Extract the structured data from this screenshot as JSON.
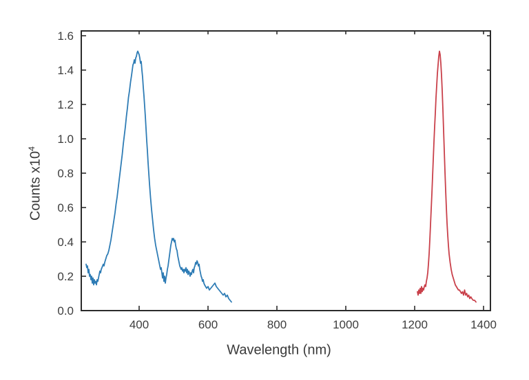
{
  "figure": {
    "background": "#ffffff",
    "ylabel_main": "Counts x10",
    "ylabel_sup": "4"
  },
  "chart_data": {
    "type": "line",
    "title": "",
    "xlabel": "Wavelength (nm)",
    "ylabel": "Counts x10^4",
    "xlim": [
      232,
      1420
    ],
    "ylim": [
      0,
      1.628
    ],
    "x_ticks": [
      400,
      600,
      800,
      1000,
      1200,
      1400
    ],
    "y_ticks": [
      0.0,
      0.2,
      0.4,
      0.6,
      0.8,
      1.0,
      1.2,
      1.4,
      1.6
    ],
    "grid": false,
    "legend": "none",
    "axis_color": "#2b2b2b",
    "tick_label_color": "#3d3d3d",
    "series": [
      {
        "name": "blue-spectrum",
        "color": "#2e7cb5",
        "points": [
          [
            246,
            0.27
          ],
          [
            248,
            0.25
          ],
          [
            250,
            0.26
          ],
          [
            252,
            0.22
          ],
          [
            254,
            0.24
          ],
          [
            256,
            0.2
          ],
          [
            258,
            0.21
          ],
          [
            260,
            0.18
          ],
          [
            262,
            0.2
          ],
          [
            264,
            0.16
          ],
          [
            266,
            0.19
          ],
          [
            268,
            0.15
          ],
          [
            270,
            0.18
          ],
          [
            272,
            0.16
          ],
          [
            274,
            0.17
          ],
          [
            276,
            0.15
          ],
          [
            278,
            0.18
          ],
          [
            280,
            0.17
          ],
          [
            282,
            0.19
          ],
          [
            284,
            0.21
          ],
          [
            286,
            0.23
          ],
          [
            288,
            0.22
          ],
          [
            290,
            0.24
          ],
          [
            292,
            0.25
          ],
          [
            294,
            0.26
          ],
          [
            296,
            0.27
          ],
          [
            298,
            0.26
          ],
          [
            300,
            0.28
          ],
          [
            303,
            0.3
          ],
          [
            306,
            0.32
          ],
          [
            309,
            0.33
          ],
          [
            312,
            0.35
          ],
          [
            315,
            0.38
          ],
          [
            318,
            0.41
          ],
          [
            321,
            0.45
          ],
          [
            324,
            0.49
          ],
          [
            327,
            0.53
          ],
          [
            330,
            0.57
          ],
          [
            333,
            0.62
          ],
          [
            336,
            0.66
          ],
          [
            339,
            0.71
          ],
          [
            342,
            0.76
          ],
          [
            345,
            0.81
          ],
          [
            348,
            0.86
          ],
          [
            351,
            0.91
          ],
          [
            354,
            0.97
          ],
          [
            357,
            1.02
          ],
          [
            360,
            1.07
          ],
          [
            363,
            1.13
          ],
          [
            366,
            1.18
          ],
          [
            369,
            1.24
          ],
          [
            372,
            1.28
          ],
          [
            375,
            1.33
          ],
          [
            378,
            1.37
          ],
          [
            380,
            1.4
          ],
          [
            382,
            1.43
          ],
          [
            384,
            1.44
          ],
          [
            386,
            1.46
          ],
          [
            388,
            1.44
          ],
          [
            390,
            1.47
          ],
          [
            392,
            1.48
          ],
          [
            394,
            1.5
          ],
          [
            396,
            1.51
          ],
          [
            398,
            1.5
          ],
          [
            400,
            1.49
          ],
          [
            402,
            1.47
          ],
          [
            404,
            1.44
          ],
          [
            406,
            1.45
          ],
          [
            408,
            1.4
          ],
          [
            410,
            1.36
          ],
          [
            412,
            1.3
          ],
          [
            414,
            1.25
          ],
          [
            416,
            1.19
          ],
          [
            418,
            1.13
          ],
          [
            420,
            1.06
          ],
          [
            422,
            0.99
          ],
          [
            424,
            0.93
          ],
          [
            426,
            0.86
          ],
          [
            428,
            0.8
          ],
          [
            430,
            0.74
          ],
          [
            433,
            0.66
          ],
          [
            436,
            0.59
          ],
          [
            439,
            0.53
          ],
          [
            442,
            0.47
          ],
          [
            445,
            0.42
          ],
          [
            448,
            0.38
          ],
          [
            451,
            0.35
          ],
          [
            454,
            0.32
          ],
          [
            457,
            0.29
          ],
          [
            460,
            0.26
          ],
          [
            462,
            0.24
          ],
          [
            464,
            0.25
          ],
          [
            466,
            0.22
          ],
          [
            468,
            0.19
          ],
          [
            470,
            0.22
          ],
          [
            472,
            0.17
          ],
          [
            474,
            0.2
          ],
          [
            476,
            0.16
          ],
          [
            478,
            0.19
          ],
          [
            480,
            0.21
          ],
          [
            482,
            0.24
          ],
          [
            484,
            0.26
          ],
          [
            486,
            0.29
          ],
          [
            488,
            0.32
          ],
          [
            490,
            0.35
          ],
          [
            492,
            0.38
          ],
          [
            494,
            0.4
          ],
          [
            496,
            0.42
          ],
          [
            498,
            0.41
          ],
          [
            500,
            0.42
          ],
          [
            502,
            0.4
          ],
          [
            504,
            0.41
          ],
          [
            506,
            0.38
          ],
          [
            508,
            0.36
          ],
          [
            510,
            0.35
          ],
          [
            512,
            0.32
          ],
          [
            514,
            0.3
          ],
          [
            516,
            0.28
          ],
          [
            518,
            0.26
          ],
          [
            520,
            0.25
          ],
          [
            522,
            0.24
          ],
          [
            524,
            0.25
          ],
          [
            526,
            0.23
          ],
          [
            528,
            0.24
          ],
          [
            530,
            0.22
          ],
          [
            532,
            0.24
          ],
          [
            534,
            0.23
          ],
          [
            536,
            0.25
          ],
          [
            538,
            0.22
          ],
          [
            540,
            0.24
          ],
          [
            542,
            0.21
          ],
          [
            544,
            0.23
          ],
          [
            546,
            0.22
          ],
          [
            548,
            0.2
          ],
          [
            550,
            0.22
          ],
          [
            552,
            0.21
          ],
          [
            554,
            0.23
          ],
          [
            556,
            0.24
          ],
          [
            558,
            0.22
          ],
          [
            560,
            0.25
          ],
          [
            562,
            0.26
          ],
          [
            564,
            0.28
          ],
          [
            566,
            0.27
          ],
          [
            568,
            0.29
          ],
          [
            570,
            0.28
          ],
          [
            572,
            0.26
          ],
          [
            574,
            0.27
          ],
          [
            576,
            0.24
          ],
          [
            578,
            0.22
          ],
          [
            580,
            0.2
          ],
          [
            582,
            0.19
          ],
          [
            584,
            0.17
          ],
          [
            586,
            0.18
          ],
          [
            588,
            0.16
          ],
          [
            590,
            0.15
          ],
          [
            593,
            0.14
          ],
          [
            596,
            0.13
          ],
          [
            600,
            0.14
          ],
          [
            604,
            0.12
          ],
          [
            608,
            0.13
          ],
          [
            612,
            0.14
          ],
          [
            616,
            0.15
          ],
          [
            620,
            0.16
          ],
          [
            624,
            0.14
          ],
          [
            628,
            0.13
          ],
          [
            632,
            0.12
          ],
          [
            636,
            0.11
          ],
          [
            640,
            0.1
          ],
          [
            644,
            0.09
          ],
          [
            648,
            0.1
          ],
          [
            652,
            0.08
          ],
          [
            656,
            0.09
          ],
          [
            660,
            0.07
          ],
          [
            664,
            0.06
          ],
          [
            668,
            0.05
          ]
        ]
      },
      {
        "name": "red-spectrum",
        "color": "#c9404a",
        "points": [
          [
            1208,
            0.11
          ],
          [
            1210,
            0.09
          ],
          [
            1212,
            0.12
          ],
          [
            1214,
            0.1
          ],
          [
            1216,
            0.13
          ],
          [
            1218,
            0.1
          ],
          [
            1220,
            0.14
          ],
          [
            1222,
            0.11
          ],
          [
            1224,
            0.13
          ],
          [
            1226,
            0.12
          ],
          [
            1228,
            0.14
          ],
          [
            1230,
            0.15
          ],
          [
            1232,
            0.14
          ],
          [
            1234,
            0.17
          ],
          [
            1236,
            0.19
          ],
          [
            1238,
            0.22
          ],
          [
            1240,
            0.27
          ],
          [
            1242,
            0.33
          ],
          [
            1244,
            0.41
          ],
          [
            1246,
            0.5
          ],
          [
            1248,
            0.59
          ],
          [
            1250,
            0.68
          ],
          [
            1252,
            0.78
          ],
          [
            1254,
            0.88
          ],
          [
            1256,
            0.98
          ],
          [
            1258,
            1.07
          ],
          [
            1260,
            1.15
          ],
          [
            1262,
            1.24
          ],
          [
            1264,
            1.31
          ],
          [
            1266,
            1.38
          ],
          [
            1268,
            1.43
          ],
          [
            1270,
            1.48
          ],
          [
            1272,
            1.51
          ],
          [
            1274,
            1.49
          ],
          [
            1276,
            1.44
          ],
          [
            1278,
            1.37
          ],
          [
            1280,
            1.28
          ],
          [
            1282,
            1.17
          ],
          [
            1284,
            1.05
          ],
          [
            1286,
            0.93
          ],
          [
            1288,
            0.81
          ],
          [
            1290,
            0.7
          ],
          [
            1292,
            0.6
          ],
          [
            1294,
            0.51
          ],
          [
            1296,
            0.44
          ],
          [
            1298,
            0.38
          ],
          [
            1300,
            0.33
          ],
          [
            1303,
            0.28
          ],
          [
            1306,
            0.24
          ],
          [
            1309,
            0.21
          ],
          [
            1312,
            0.19
          ],
          [
            1315,
            0.17
          ],
          [
            1318,
            0.15
          ],
          [
            1321,
            0.14
          ],
          [
            1324,
            0.13
          ],
          [
            1327,
            0.12
          ],
          [
            1330,
            0.12
          ],
          [
            1333,
            0.11
          ],
          [
            1336,
            0.1
          ],
          [
            1339,
            0.11
          ],
          [
            1342,
            0.09
          ],
          [
            1345,
            0.12
          ],
          [
            1348,
            0.09
          ],
          [
            1351,
            0.1
          ],
          [
            1354,
            0.08
          ],
          [
            1357,
            0.09
          ],
          [
            1360,
            0.07
          ],
          [
            1363,
            0.08
          ],
          [
            1366,
            0.07
          ],
          [
            1370,
            0.06
          ],
          [
            1374,
            0.06
          ],
          [
            1378,
            0.05
          ]
        ]
      }
    ]
  }
}
